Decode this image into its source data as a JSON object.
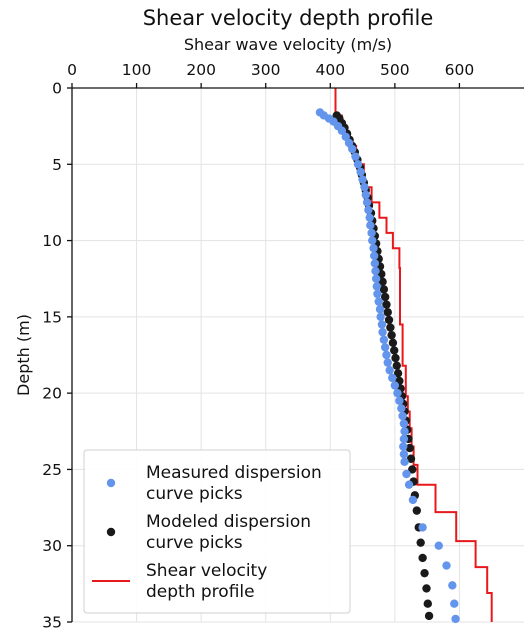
{
  "chart_data": {
    "type": "scatter",
    "title": "Shear velocity depth profile",
    "xlabel": "Shear wave velocity (m/s)",
    "ylabel": "Depth (m)",
    "xlim": [
      0,
      700
    ],
    "ylim": [
      0,
      35
    ],
    "y_inverted": true,
    "x_axis_position": "top",
    "x_ticks": [
      "0",
      "100",
      "200",
      "300",
      "400",
      "500",
      "600"
    ],
    "x_tick_values": [
      0,
      100,
      200,
      300,
      400,
      500,
      600
    ],
    "y_ticks": [
      "0",
      "5",
      "10",
      "15",
      "20",
      "25",
      "30",
      "35"
    ],
    "y_tick_values": [
      0,
      5,
      10,
      15,
      20,
      25,
      30,
      35
    ],
    "grid": true,
    "legend_position": "bottom-left",
    "series": [
      {
        "name": "Measured dispersion curve picks",
        "kind": "scatter",
        "color": "#6495ed",
        "points": [
          [
            384,
            1.6
          ],
          [
            390,
            1.8
          ],
          [
            398,
            2.0
          ],
          [
            405,
            2.2
          ],
          [
            412,
            2.5
          ],
          [
            418,
            2.8
          ],
          [
            424,
            3.2
          ],
          [
            429,
            3.6
          ],
          [
            434,
            4.0
          ],
          [
            439,
            4.5
          ],
          [
            443,
            5.0
          ],
          [
            447,
            5.5
          ],
          [
            450,
            6.0
          ],
          [
            453,
            6.5
          ],
          [
            455,
            7.0
          ],
          [
            457,
            7.5
          ],
          [
            459,
            8.0
          ],
          [
            461,
            8.5
          ],
          [
            462,
            9.0
          ],
          [
            464,
            9.5
          ],
          [
            465,
            10.0
          ],
          [
            467,
            10.5
          ],
          [
            468,
            11.0
          ],
          [
            469,
            11.5
          ],
          [
            470,
            12.0
          ],
          [
            471,
            12.5
          ],
          [
            472,
            13.0
          ],
          [
            473,
            13.5
          ],
          [
            475,
            14.0
          ],
          [
            477,
            14.5
          ],
          [
            478,
            15.0
          ],
          [
            480,
            15.5
          ],
          [
            481,
            16.0
          ],
          [
            483,
            16.5
          ],
          [
            485,
            17.0
          ],
          [
            487,
            17.5
          ],
          [
            489,
            18.0
          ],
          [
            492,
            18.5
          ],
          [
            496,
            19.0
          ],
          [
            500,
            19.5
          ],
          [
            504,
            20.0
          ],
          [
            507,
            20.5
          ],
          [
            510,
            21.0
          ],
          [
            512,
            21.5
          ],
          [
            514,
            22.0
          ],
          [
            515,
            22.5
          ],
          [
            514,
            23.0
          ],
          [
            513,
            23.5
          ],
          [
            514,
            24.0
          ],
          [
            515,
            24.5
          ],
          [
            518,
            25.3
          ],
          [
            522,
            26.0
          ],
          [
            528,
            27.0
          ],
          [
            543,
            28.8
          ],
          [
            568,
            30.0
          ],
          [
            580,
            31.3
          ],
          [
            589,
            32.6
          ],
          [
            592,
            33.8
          ],
          [
            594,
            34.8
          ]
        ]
      },
      {
        "name": "Modeled dispersion curve picks",
        "kind": "scatter",
        "color": "#1a1a1a",
        "points": [
          [
            410,
            1.8
          ],
          [
            414,
            2.0
          ],
          [
            418,
            2.3
          ],
          [
            422,
            2.6
          ],
          [
            426,
            3.0
          ],
          [
            430,
            3.4
          ],
          [
            434,
            3.8
          ],
          [
            438,
            4.2
          ],
          [
            442,
            4.7
          ],
          [
            446,
            5.2
          ],
          [
            449,
            5.7
          ],
          [
            452,
            6.2
          ],
          [
            455,
            6.7
          ],
          [
            458,
            7.2
          ],
          [
            460,
            7.7
          ],
          [
            463,
            8.2
          ],
          [
            465,
            8.7
          ],
          [
            467,
            9.2
          ],
          [
            469,
            9.7
          ],
          [
            471,
            10.2
          ],
          [
            473,
            10.7
          ],
          [
            475,
            11.2
          ],
          [
            477,
            11.7
          ],
          [
            479,
            12.2
          ],
          [
            481,
            12.7
          ],
          [
            483,
            13.2
          ],
          [
            485,
            13.7
          ],
          [
            487,
            14.2
          ],
          [
            489,
            14.7
          ],
          [
            491,
            15.2
          ],
          [
            493,
            15.7
          ],
          [
            495,
            16.2
          ],
          [
            497,
            16.7
          ],
          [
            499,
            17.2
          ],
          [
            501,
            17.7
          ],
          [
            503,
            18.2
          ],
          [
            505,
            18.7
          ],
          [
            507,
            19.2
          ],
          [
            509,
            19.7
          ],
          [
            511,
            20.2
          ],
          [
            513,
            20.7
          ],
          [
            515,
            21.2
          ],
          [
            517,
            21.8
          ],
          [
            519,
            22.4
          ],
          [
            521,
            23.0
          ],
          [
            523,
            23.6
          ],
          [
            525,
            24.3
          ],
          [
            527,
            25.0
          ],
          [
            529,
            25.8
          ],
          [
            531,
            26.7
          ],
          [
            534,
            27.7
          ],
          [
            537,
            28.8
          ],
          [
            540,
            29.8
          ],
          [
            543,
            30.8
          ],
          [
            546,
            31.8
          ],
          [
            549,
            32.8
          ],
          [
            551,
            33.8
          ],
          [
            553,
            34.6
          ]
        ]
      },
      {
        "name": "Shear velocity depth profile",
        "kind": "step",
        "color": "#e8191c",
        "points": [
          [
            408,
            0
          ],
          [
            408,
            1.8
          ],
          [
            418,
            1.8
          ],
          [
            418,
            2.8
          ],
          [
            428,
            2.8
          ],
          [
            428,
            3.8
          ],
          [
            440,
            3.8
          ],
          [
            440,
            5.0
          ],
          [
            452,
            5.0
          ],
          [
            452,
            6.5
          ],
          [
            464,
            6.5
          ],
          [
            464,
            7.5
          ],
          [
            476,
            7.5
          ],
          [
            476,
            8.5
          ],
          [
            487,
            8.5
          ],
          [
            487,
            9.5
          ],
          [
            497,
            9.5
          ],
          [
            497,
            10.5
          ],
          [
            507,
            10.5
          ],
          [
            507,
            11.8
          ],
          [
            508,
            11.8
          ],
          [
            508,
            15.5
          ],
          [
            512,
            15.5
          ],
          [
            512,
            18.2
          ],
          [
            517,
            18.2
          ],
          [
            517,
            20.2
          ],
          [
            520,
            20.2
          ],
          [
            520,
            21.2
          ],
          [
            523,
            21.2
          ],
          [
            523,
            22.3
          ],
          [
            526,
            22.3
          ],
          [
            526,
            23.5
          ],
          [
            529,
            23.5
          ],
          [
            529,
            24.7
          ],
          [
            535,
            24.7
          ],
          [
            535,
            26.0
          ],
          [
            563,
            26.0
          ],
          [
            563,
            27.8
          ],
          [
            595,
            27.8
          ],
          [
            595,
            29.7
          ],
          [
            625,
            29.7
          ],
          [
            625,
            31.4
          ],
          [
            643,
            31.4
          ],
          [
            643,
            33.1
          ],
          [
            650,
            33.1
          ],
          [
            650,
            35
          ]
        ]
      }
    ],
    "legend": [
      {
        "lines": [
          "Measured dispersion",
          "curve picks"
        ],
        "color": "#6495ed",
        "marker": "dot"
      },
      {
        "lines": [
          "Modeled dispersion",
          "curve picks"
        ],
        "color": "#1a1a1a",
        "marker": "dot"
      },
      {
        "lines": [
          "Shear velocity",
          "depth profile"
        ],
        "color": "#e8191c",
        "marker": "line"
      }
    ]
  }
}
